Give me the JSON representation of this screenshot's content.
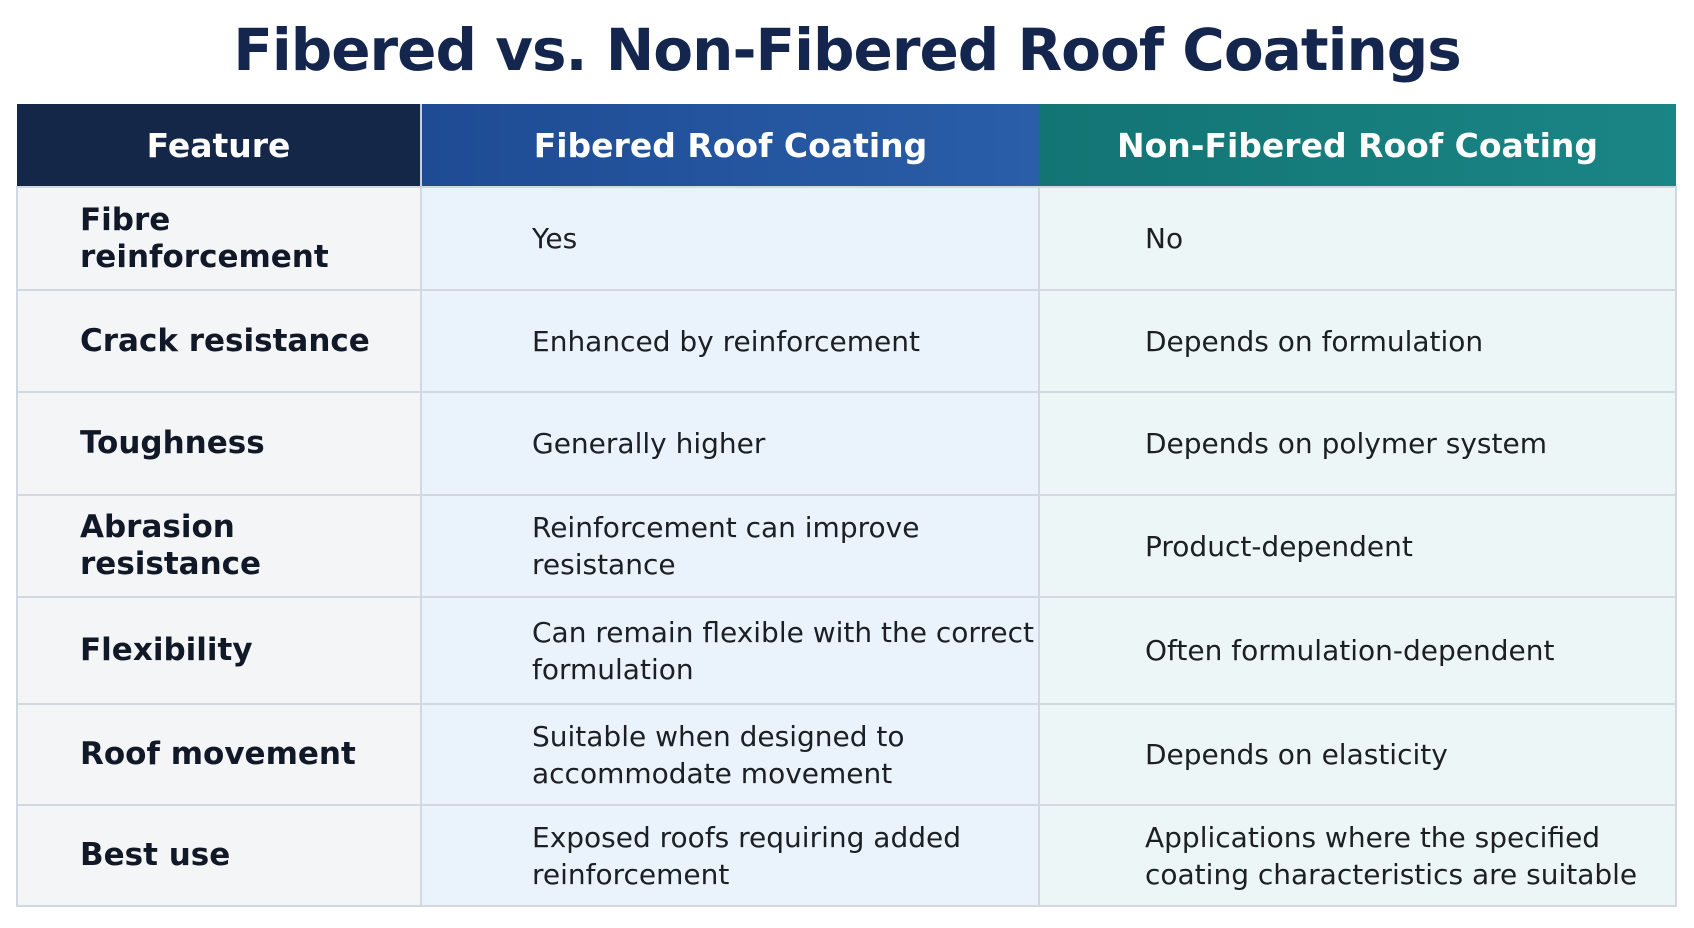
{
  "title": "Fibered vs. Non-Fibered Roof Coatings",
  "table": {
    "headers": [
      "Feature",
      "Fibered Roof Coating",
      "Non-Fibered Roof Coating"
    ],
    "header_colors": [
      "#142748",
      "#2455a0",
      "#167e7e"
    ],
    "rows": [
      {
        "feature": "Fibre reinforcement",
        "fibered": "Yes",
        "non_fibered": "No"
      },
      {
        "feature": "Crack resistance",
        "fibered": "Enhanced by reinforcement",
        "non_fibered": "Depends on formulation"
      },
      {
        "feature": "Toughness",
        "fibered": "Generally higher",
        "non_fibered": "Depends on polymer system"
      },
      {
        "feature": "Abrasion resistance",
        "fibered": "Reinforcement can improve resistance",
        "non_fibered": "Product-dependent"
      },
      {
        "feature": "Flexibility",
        "fibered": "Can remain flexible with the correct formulation",
        "non_fibered": "Often formulation-dependent"
      },
      {
        "feature": "Roof movement",
        "fibered": "Suitable when designed to accommodate movement",
        "non_fibered": "Depends on elasticity"
      },
      {
        "feature": "Best use",
        "fibered": "Exposed roofs requiring added reinforcement",
        "non_fibered": "Applications where the specified coating characteristics are suitable"
      }
    ]
  }
}
